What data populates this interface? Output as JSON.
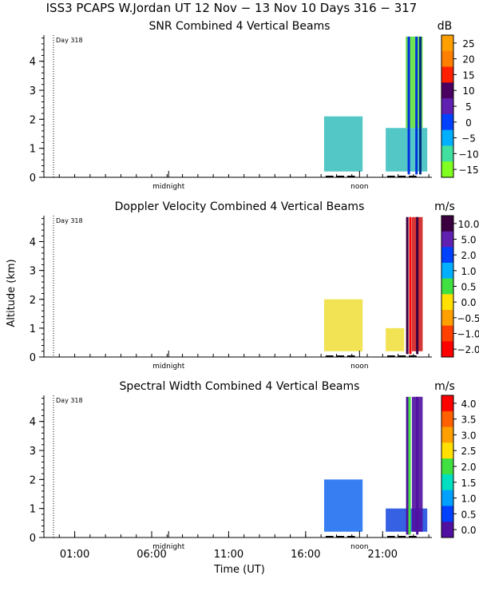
{
  "figure": {
    "title": "ISS3 PCAPS W.Jordan UT  12 Nov − 13 Nov 10 Days 316 − 317",
    "xlabel": "Time (UT)",
    "ylabel": "Altitude (km)",
    "x_ticks": [
      "01:00",
      "06:00",
      "11:00",
      "16:00",
      "21:00"
    ],
    "x_tick_hours": [
      1,
      6,
      11,
      16,
      21
    ],
    "midnight_label": "midnight",
    "noon_label": "noon",
    "day_marker": "Day 318"
  },
  "chart_data": [
    {
      "type": "heatmap",
      "title": "SNR Combined 4 Vertical Beams",
      "units": "dB",
      "xlim": [
        -1.0,
        24.2
      ],
      "ylim": [
        0,
        4.9
      ],
      "y_ticks": [
        0,
        1,
        2,
        3,
        4
      ],
      "colorbar": {
        "labels": [
          "25",
          "20",
          "15",
          "10",
          "5",
          "0",
          "−5",
          "−10",
          "−15"
        ],
        "colors": [
          "#ffa000",
          "#ff8000",
          "#ff2000",
          "#4a0060",
          "#6020b0",
          "#0040ff",
          "#00b0ff",
          "#40e0a0",
          "#80ff20"
        ]
      },
      "blocks": [
        {
          "x": [
            17.2,
            19.7
          ],
          "y": [
            0.2,
            2.1
          ],
          "color": "#40c0c0"
        },
        {
          "x": [
            21.2,
            23.9
          ],
          "y": [
            0.2,
            1.7
          ],
          "color": "#40c0c0"
        },
        {
          "x": [
            22.5,
            23.6
          ],
          "y": [
            1.7,
            4.85
          ],
          "color": "#60e040"
        }
      ],
      "stripes": [
        {
          "x": 22.7,
          "y": [
            0.1,
            4.85
          ],
          "color": "#0030e0"
        },
        {
          "x": 23.2,
          "y": [
            0.1,
            4.85
          ],
          "color": "#0030e0"
        },
        {
          "x": 23.45,
          "y": [
            0.1,
            4.85
          ],
          "color": "#003080"
        }
      ]
    },
    {
      "type": "heatmap",
      "title": "Doppler Velocity Combined 4 Vertical Beams",
      "units": "m/s",
      "xlim": [
        -1.0,
        24.2
      ],
      "ylim": [
        0,
        4.9
      ],
      "y_ticks": [
        0,
        1,
        2,
        3,
        4
      ],
      "colorbar": {
        "labels": [
          "10.0",
          "5.0",
          "2.0",
          "1.0",
          "0.5",
          "0.0",
          "−0.5",
          "−1.0",
          "−2.0"
        ],
        "colors": [
          "#3a0040",
          "#6020b0",
          "#0040ff",
          "#00b0ff",
          "#40e040",
          "#ffe000",
          "#ffa000",
          "#ff4000",
          "#ff0000"
        ]
      },
      "blocks": [
        {
          "x": [
            17.2,
            19.7
          ],
          "y": [
            0.2,
            2.0
          ],
          "color": "#f0e040"
        },
        {
          "x": [
            21.2,
            22.4
          ],
          "y": [
            0.2,
            1.0
          ],
          "color": "#f0e040"
        },
        {
          "x": [
            22.9,
            23.6
          ],
          "y": [
            0.2,
            4.85
          ],
          "color": "#d02020"
        }
      ],
      "stripes": [
        {
          "x": 22.6,
          "y": [
            0.1,
            4.85
          ],
          "color": "#3a0040"
        },
        {
          "x": 22.8,
          "y": [
            0.1,
            4.85
          ],
          "color": "#ff0000"
        },
        {
          "x": 23.25,
          "y": [
            0.1,
            4.85
          ],
          "color": "#3a0040"
        }
      ]
    },
    {
      "type": "heatmap",
      "title": "Spectral Width Combined 4 Vertical Beams",
      "units": "m/s",
      "xlim": [
        -1.0,
        24.2
      ],
      "ylim": [
        0,
        4.9
      ],
      "y_ticks": [
        0,
        1,
        2,
        3,
        4
      ],
      "colorbar": {
        "labels": [
          "4.0",
          "3.5",
          "3.0",
          "2.5",
          "2.0",
          "1.5",
          "1.0",
          "0.5",
          "0.0"
        ],
        "colors": [
          "#ff0000",
          "#ff6000",
          "#ffa000",
          "#ffe000",
          "#40e040",
          "#00e0c0",
          "#00a0ff",
          "#0040ff",
          "#5010a0"
        ]
      },
      "blocks": [
        {
          "x": [
            17.2,
            19.7
          ],
          "y": [
            0.2,
            2.0
          ],
          "color": "#2070f0"
        },
        {
          "x": [
            21.2,
            23.9
          ],
          "y": [
            0.2,
            1.0
          ],
          "color": "#2050e0"
        },
        {
          "x": [
            22.9,
            23.6
          ],
          "y": [
            0.2,
            4.85
          ],
          "color": "#5010a0"
        }
      ],
      "stripes": [
        {
          "x": 22.6,
          "y": [
            0.1,
            4.85
          ],
          "color": "#5010a0"
        },
        {
          "x": 22.75,
          "y": [
            0.1,
            4.85
          ],
          "color": "#40e040"
        },
        {
          "x": 23.25,
          "y": [
            0.1,
            4.85
          ],
          "color": "#5010a0"
        }
      ]
    }
  ]
}
